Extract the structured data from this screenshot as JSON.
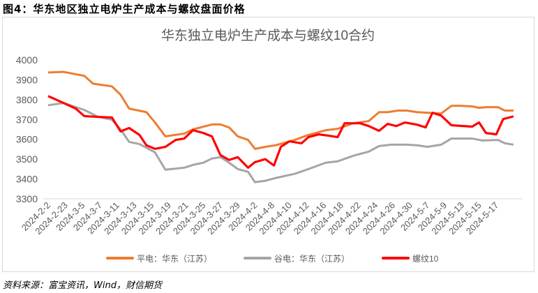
{
  "figure_title": "图4：华东地区独立电炉生产成本与螺纹盘面价格",
  "source": "资料来源：富宝资讯，Wind，财信期货",
  "chart_data": {
    "type": "line",
    "title": "华东独立电炉生产成本与螺纹10合约",
    "xlabel": "",
    "ylabel": "",
    "ylim": [
      3300,
      4000
    ],
    "yticks": [
      "3300",
      "3400",
      "3500",
      "3600",
      "3700",
      "3800",
      "3900",
      "4000"
    ],
    "categories": [
      "2024-2-2",
      "2024-2-23",
      "2024-3-5",
      "2024-3-7",
      "2024-3-11",
      "2024-3-13",
      "2024-3-15",
      "2024-3-19",
      "2024-3-21",
      "2024-3-25",
      "2024-3-27",
      "2024-3-29",
      "2024-4-2",
      "2024-4-8",
      "2024-4-10",
      "2024-4-12",
      "2024-4-16",
      "2024-4-18",
      "2024-4-22",
      "2024-4-24",
      "2024-4-26",
      "2024-4-30",
      "2024-5-7",
      "2024-5-9",
      "2024-5-13",
      "2024-5-15",
      "2024-5-17"
    ],
    "x_note": "x values are positions in category-tick units",
    "legend_position": "bottom",
    "grid": false,
    "series": [
      {
        "name": "平电：华东（江苏）",
        "color": "#ed7d31",
        "points": [
          [
            0,
            3937
          ],
          [
            0.9,
            3940
          ],
          [
            2.1,
            3920
          ],
          [
            2.6,
            3881
          ],
          [
            3.7,
            3867
          ],
          [
            4.2,
            3825
          ],
          [
            4.7,
            3755
          ],
          [
            5.7,
            3737
          ],
          [
            6.2,
            3685
          ],
          [
            6.8,
            3615
          ],
          [
            7.9,
            3629
          ],
          [
            8.4,
            3650
          ],
          [
            9.5,
            3675
          ],
          [
            10.0,
            3675
          ],
          [
            10.5,
            3660
          ],
          [
            11.0,
            3615
          ],
          [
            11.6,
            3597
          ],
          [
            12.0,
            3552
          ],
          [
            12.6,
            3562
          ],
          [
            13.2,
            3570
          ],
          [
            14.3,
            3597
          ],
          [
            15.1,
            3622
          ],
          [
            16.1,
            3646
          ],
          [
            16.8,
            3653
          ],
          [
            17.7,
            3681
          ],
          [
            18.6,
            3692
          ],
          [
            19.2,
            3737
          ],
          [
            19.7,
            3737
          ],
          [
            20.3,
            3745
          ],
          [
            20.8,
            3745
          ],
          [
            21.4,
            3737
          ],
          [
            22.0,
            3734
          ],
          [
            22.8,
            3730
          ],
          [
            23.4,
            3769
          ],
          [
            23.9,
            3769
          ],
          [
            24.6,
            3766
          ],
          [
            25.0,
            3759
          ],
          [
            25.4,
            3762
          ],
          [
            26.1,
            3762
          ],
          [
            26.5,
            3745
          ],
          [
            27.0,
            3745
          ]
        ]
      },
      {
        "name": "谷电：华东（江苏）",
        "color": "#a5a5a5",
        "points": [
          [
            0,
            3772
          ],
          [
            0.9,
            3783
          ],
          [
            2.1,
            3748
          ],
          [
            2.9,
            3713
          ],
          [
            3.7,
            3699
          ],
          [
            4.2,
            3650
          ],
          [
            4.7,
            3587
          ],
          [
            5.3,
            3576
          ],
          [
            6.2,
            3534
          ],
          [
            6.8,
            3447
          ],
          [
            7.9,
            3457
          ],
          [
            8.4,
            3471
          ],
          [
            9.0,
            3482
          ],
          [
            9.5,
            3503
          ],
          [
            10.0,
            3510
          ],
          [
            10.5,
            3482
          ],
          [
            11.0,
            3450
          ],
          [
            11.6,
            3436
          ],
          [
            12.0,
            3384
          ],
          [
            12.6,
            3391
          ],
          [
            13.2,
            3405
          ],
          [
            14.3,
            3426
          ],
          [
            15.1,
            3450
          ],
          [
            16.1,
            3482
          ],
          [
            16.8,
            3489
          ],
          [
            17.7,
            3517
          ],
          [
            18.6,
            3538
          ],
          [
            19.2,
            3566
          ],
          [
            19.9,
            3573
          ],
          [
            20.8,
            3573
          ],
          [
            21.4,
            3570
          ],
          [
            22.0,
            3562
          ],
          [
            22.8,
            3573
          ],
          [
            23.4,
            3604
          ],
          [
            24.6,
            3604
          ],
          [
            25.2,
            3594
          ],
          [
            26.1,
            3597
          ],
          [
            26.5,
            3580
          ],
          [
            27.0,
            3573
          ]
        ]
      },
      {
        "name": "螺纹10",
        "color": "#ff0000",
        "points": [
          [
            0,
            3818
          ],
          [
            0.9,
            3783
          ],
          [
            1.6,
            3755
          ],
          [
            2.1,
            3717
          ],
          [
            2.9,
            3713
          ],
          [
            3.7,
            3710
          ],
          [
            4.2,
            3640
          ],
          [
            4.7,
            3657
          ],
          [
            5.3,
            3622
          ],
          [
            5.7,
            3570
          ],
          [
            6.2,
            3552
          ],
          [
            6.8,
            3562
          ],
          [
            7.4,
            3597
          ],
          [
            7.9,
            3604
          ],
          [
            8.4,
            3646
          ],
          [
            9.0,
            3632
          ],
          [
            9.5,
            3615
          ],
          [
            10.0,
            3520
          ],
          [
            10.5,
            3496
          ],
          [
            11.0,
            3510
          ],
          [
            11.6,
            3457
          ],
          [
            12.0,
            3485
          ],
          [
            12.6,
            3500
          ],
          [
            13.1,
            3468
          ],
          [
            13.5,
            3562
          ],
          [
            14.0,
            3590
          ],
          [
            14.7,
            3580
          ],
          [
            15.1,
            3611
          ],
          [
            15.7,
            3625
          ],
          [
            16.3,
            3618
          ],
          [
            16.8,
            3611
          ],
          [
            17.2,
            3681
          ],
          [
            18.1,
            3681
          ],
          [
            18.6,
            3667
          ],
          [
            19.2,
            3643
          ],
          [
            19.7,
            3678
          ],
          [
            20.2,
            3667
          ],
          [
            20.7,
            3685
          ],
          [
            21.4,
            3674
          ],
          [
            21.9,
            3660
          ],
          [
            22.3,
            3734
          ],
          [
            22.8,
            3720
          ],
          [
            23.4,
            3671
          ],
          [
            24.6,
            3664
          ],
          [
            25.0,
            3685
          ],
          [
            25.4,
            3632
          ],
          [
            26.0,
            3625
          ],
          [
            26.4,
            3702
          ],
          [
            27.0,
            3716
          ]
        ]
      }
    ]
  }
}
